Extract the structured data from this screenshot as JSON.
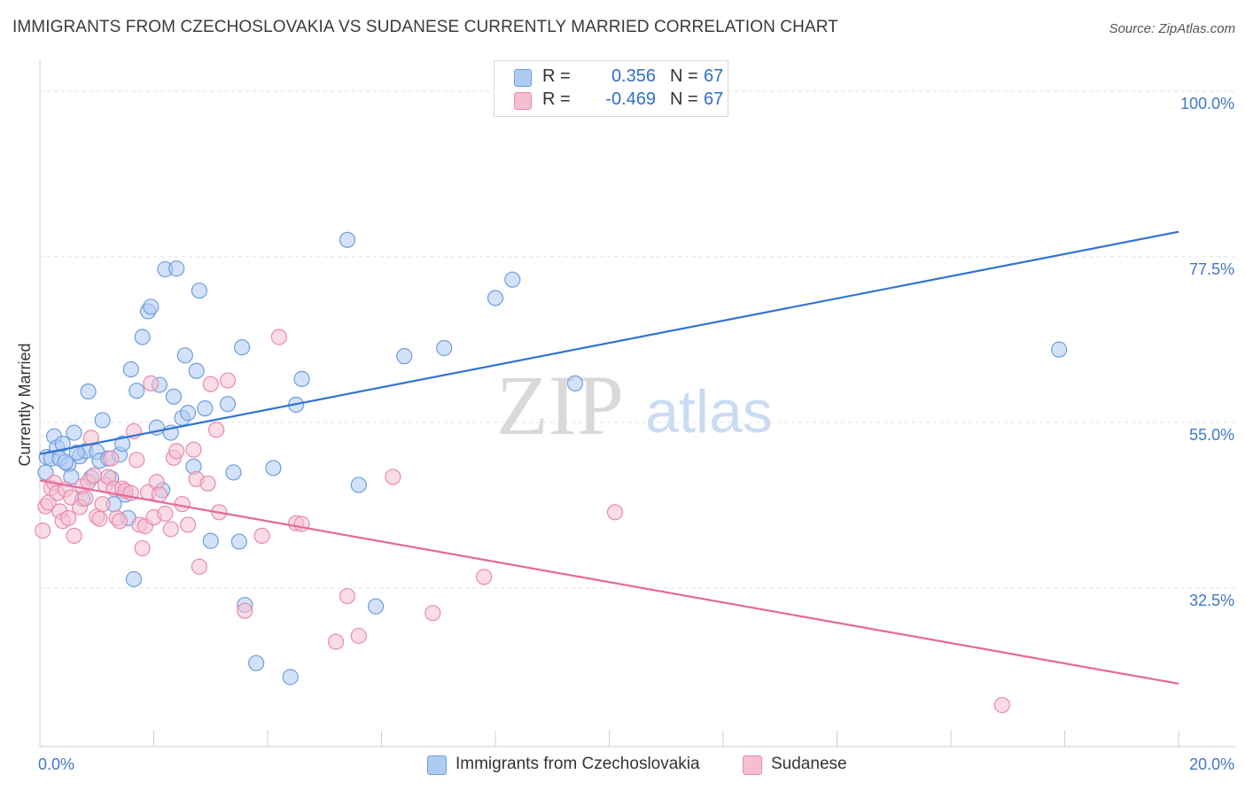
{
  "title": "IMMIGRANTS FROM CZECHOSLOVAKIA VS SUDANESE CURRENTLY MARRIED CORRELATION CHART",
  "source": "Source: ZipAtlas.com",
  "watermark": {
    "zip": "ZIP",
    "atlas": "atlas"
  },
  "legend": {
    "r_label": "R =",
    "n_label": "N =",
    "rows": [
      {
        "r": "0.356",
        "n": "67"
      },
      {
        "r": "-0.469",
        "n": "67"
      }
    ]
  },
  "bottom_legend": [
    "Immigrants from Czechoslovakia",
    "Sudanese"
  ],
  "colors": {
    "czech_fill": "#aecbf2",
    "czech_stroke": "#6d9ee0",
    "czech_line": "#2f74d0",
    "sudan_fill": "#f6bfd1",
    "sudan_stroke": "#e98aaa",
    "sudan_line": "#e4699a",
    "tick_label": "#3f78c9",
    "grid": "#e2e2e2"
  },
  "chart_data": {
    "type": "scatter",
    "ylabel": "Currently Married",
    "xlabel": "",
    "x_tick_labels": [
      "0.0%",
      "20.0%"
    ],
    "y_tick_labels": [
      "32.5%",
      "55.0%",
      "77.5%",
      "100.0%"
    ],
    "xlim": [
      0,
      20
    ],
    "ylim": [
      13,
      103
    ],
    "grid": true,
    "series": [
      {
        "name": "Immigrants from Czechoslovakia",
        "trend": {
          "x": [
            0,
            20
          ],
          "y": [
            50.7,
            80.9
          ]
        },
        "points": [
          [
            0.1,
            48.2
          ],
          [
            0.12,
            50.3
          ],
          [
            0.2,
            50.1
          ],
          [
            0.25,
            53.1
          ],
          [
            0.3,
            51.6
          ],
          [
            0.35,
            50.1
          ],
          [
            0.4,
            52.1
          ],
          [
            0.5,
            49.3
          ],
          [
            0.55,
            47.6
          ],
          [
            0.6,
            53.6
          ],
          [
            0.7,
            50.4
          ],
          [
            0.75,
            44.6
          ],
          [
            0.8,
            51.1
          ],
          [
            0.85,
            59.2
          ],
          [
            0.9,
            47.5
          ],
          [
            1.0,
            51.0
          ],
          [
            1.05,
            49.8
          ],
          [
            1.1,
            55.3
          ],
          [
            1.2,
            50.1
          ],
          [
            1.25,
            47.4
          ],
          [
            1.3,
            43.9
          ],
          [
            1.4,
            50.6
          ],
          [
            1.45,
            52.1
          ],
          [
            1.5,
            45.2
          ],
          [
            1.6,
            62.2
          ],
          [
            1.7,
            59.3
          ],
          [
            1.8,
            66.6
          ],
          [
            1.9,
            70.1
          ],
          [
            1.95,
            70.7
          ],
          [
            2.05,
            54.3
          ],
          [
            2.1,
            60.1
          ],
          [
            2.2,
            75.8
          ],
          [
            2.3,
            53.6
          ],
          [
            2.35,
            58.5
          ],
          [
            2.4,
            75.9
          ],
          [
            2.5,
            55.6
          ],
          [
            2.55,
            64.1
          ],
          [
            2.6,
            56.3
          ],
          [
            2.7,
            49.0
          ],
          [
            2.75,
            62.0
          ],
          [
            2.8,
            72.9
          ],
          [
            2.9,
            56.9
          ],
          [
            3.0,
            38.9
          ],
          [
            3.3,
            57.5
          ],
          [
            3.4,
            48.2
          ],
          [
            3.5,
            38.8
          ],
          [
            3.55,
            65.2
          ],
          [
            3.6,
            30.2
          ],
          [
            3.8,
            22.3
          ],
          [
            4.1,
            48.8
          ],
          [
            4.4,
            20.4
          ],
          [
            4.5,
            57.4
          ],
          [
            4.6,
            60.9
          ],
          [
            5.4,
            79.8
          ],
          [
            5.6,
            46.5
          ],
          [
            5.9,
            30.0
          ],
          [
            6.4,
            64.0
          ],
          [
            7.1,
            65.1
          ],
          [
            8.0,
            71.9
          ],
          [
            8.3,
            74.4
          ],
          [
            9.4,
            60.3
          ],
          [
            17.9,
            64.9
          ],
          [
            1.55,
            42.0
          ],
          [
            1.65,
            33.7
          ],
          [
            2.15,
            45.8
          ],
          [
            0.65,
            50.9
          ],
          [
            0.45,
            49.6
          ]
        ]
      },
      {
        "name": "Sudanese",
        "trend": {
          "x": [
            0,
            20
          ],
          "y": [
            47.1,
            19.5
          ]
        },
        "points": [
          [
            0.05,
            40.3
          ],
          [
            0.1,
            43.6
          ],
          [
            0.15,
            44.1
          ],
          [
            0.2,
            46.1
          ],
          [
            0.25,
            46.8
          ],
          [
            0.3,
            45.4
          ],
          [
            0.35,
            42.9
          ],
          [
            0.4,
            41.6
          ],
          [
            0.45,
            45.9
          ],
          [
            0.5,
            42.0
          ],
          [
            0.55,
            44.8
          ],
          [
            0.6,
            39.6
          ],
          [
            0.7,
            43.5
          ],
          [
            0.75,
            46.3
          ],
          [
            0.8,
            44.7
          ],
          [
            0.85,
            46.9
          ],
          [
            0.9,
            52.9
          ],
          [
            0.95,
            47.8
          ],
          [
            1.0,
            42.2
          ],
          [
            1.05,
            41.9
          ],
          [
            1.1,
            43.9
          ],
          [
            1.15,
            46.5
          ],
          [
            1.2,
            47.6
          ],
          [
            1.25,
            50.1
          ],
          [
            1.3,
            46.0
          ],
          [
            1.35,
            42.0
          ],
          [
            1.4,
            41.6
          ],
          [
            1.45,
            46.0
          ],
          [
            1.5,
            45.7
          ],
          [
            1.6,
            45.4
          ],
          [
            1.65,
            53.8
          ],
          [
            1.7,
            49.9
          ],
          [
            1.75,
            41.1
          ],
          [
            1.8,
            37.9
          ],
          [
            1.85,
            40.9
          ],
          [
            1.9,
            45.5
          ],
          [
            1.95,
            60.3
          ],
          [
            2.0,
            42.1
          ],
          [
            2.05,
            46.9
          ],
          [
            2.1,
            45.2
          ],
          [
            2.2,
            42.6
          ],
          [
            2.3,
            40.5
          ],
          [
            2.35,
            50.2
          ],
          [
            2.4,
            51.1
          ],
          [
            2.5,
            43.9
          ],
          [
            2.6,
            41.1
          ],
          [
            2.7,
            51.3
          ],
          [
            2.75,
            47.3
          ],
          [
            2.8,
            35.4
          ],
          [
            2.95,
            46.7
          ],
          [
            3.0,
            60.2
          ],
          [
            3.1,
            54.0
          ],
          [
            3.15,
            42.8
          ],
          [
            3.3,
            60.7
          ],
          [
            3.6,
            29.4
          ],
          [
            3.9,
            39.6
          ],
          [
            4.2,
            66.6
          ],
          [
            4.5,
            41.3
          ],
          [
            4.6,
            41.2
          ],
          [
            5.2,
            25.2
          ],
          [
            5.4,
            31.4
          ],
          [
            5.6,
            26.0
          ],
          [
            6.2,
            47.6
          ],
          [
            6.9,
            29.1
          ],
          [
            7.8,
            34.0
          ],
          [
            10.1,
            42.8
          ],
          [
            16.9,
            16.6
          ]
        ]
      }
    ]
  }
}
